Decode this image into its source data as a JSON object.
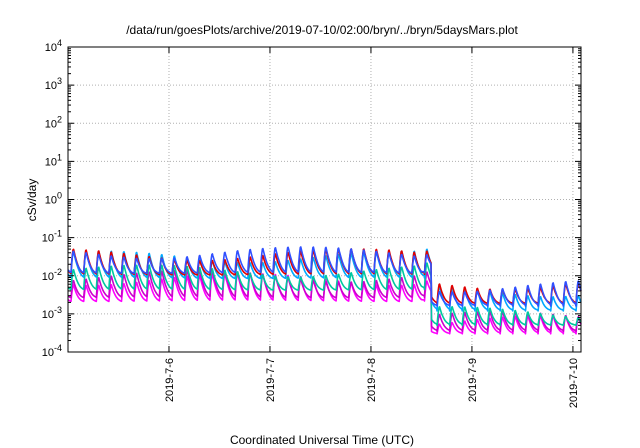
{
  "chart_data": {
    "type": "line",
    "title": "/data/run/goesPlots/archive/2019-07-10/02:00/bryn/../bryn/5daysMars.plot",
    "xlabel": "Coordinated Universal Time (UTC)",
    "ylabel": "cSv/day",
    "x_range_days": [
      5.0,
      10.08
    ],
    "y_scale": "log",
    "ylim": [
      0.0001,
      10000
    ],
    "y_ticks": [
      {
        "value": 0.0001,
        "base": "10",
        "exp": "-4"
      },
      {
        "value": 0.001,
        "base": "10",
        "exp": "-3"
      },
      {
        "value": 0.01,
        "base": "10",
        "exp": "-2"
      },
      {
        "value": 0.1,
        "base": "10",
        "exp": "-1"
      },
      {
        "value": 1,
        "base": "10",
        "exp": "0"
      },
      {
        "value": 10,
        "base": "10",
        "exp": "1"
      },
      {
        "value": 100,
        "base": "10",
        "exp": "2"
      },
      {
        "value": 1000,
        "base": "10",
        "exp": "3"
      },
      {
        "value": 10000,
        "base": "10",
        "exp": "4"
      }
    ],
    "x_ticks": [
      {
        "day": 6,
        "label": "2019-7-6"
      },
      {
        "day": 7,
        "label": "2019-7-7"
      },
      {
        "day": 8,
        "label": "2019-7-8"
      },
      {
        "day": 9,
        "label": "2019-7-9"
      },
      {
        "day": 10,
        "label": "2019-7-10"
      }
    ],
    "grid": true,
    "legend": "none",
    "series": [
      {
        "color": "#ff00ff",
        "base_before": 0.009,
        "base_after": 0.0007,
        "min_before": 0.002,
        "min_after": 0.0003
      },
      {
        "color": "#cc00cc",
        "base_before": 0.011,
        "base_after": 0.0009,
        "min_before": 0.0025,
        "min_after": 0.00035
      },
      {
        "color": "#00c8a0",
        "base_before": 0.015,
        "base_after": 0.0012,
        "min_before": 0.004,
        "min_after": 0.0005
      },
      {
        "color": "#00a8ff",
        "base_before": 0.035,
        "base_after": 0.0045,
        "min_before": 0.008,
        "min_after": 0.0012
      },
      {
        "color": "#e00000",
        "base_before": 0.04,
        "base_after": 0.007,
        "min_before": 0.01,
        "min_after": 0.0018
      },
      {
        "color": "#3050ff",
        "base_before": 0.045,
        "base_after": 0.006,
        "min_before": 0.011,
        "min_after": 0.0016
      }
    ],
    "event_day": 8.6,
    "spike_period_days": 0.125,
    "spike_first_day": 5.03
  }
}
